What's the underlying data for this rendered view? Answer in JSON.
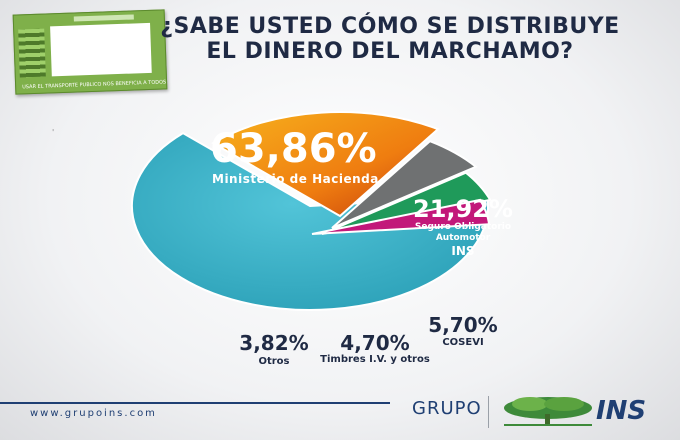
{
  "title": {
    "line1": "¿SABE USTED CÓMO SE DISTRIBUYE",
    "line2": "EL DINERO DEL MARCHAMO?"
  },
  "sticker": {
    "text": "USAR EL TRANSPORTE PUBLICO NOS BENEFICIA A TODOS"
  },
  "chart_data": {
    "type": "pie",
    "slices": [
      {
        "label": "Ministerio de Hacienda",
        "value": 63.86,
        "display": "63,86%",
        "color": "#3cb6cc"
      },
      {
        "label": "Seguro Obligatorio Automotor INS",
        "value": 21.92,
        "display": "21,92%",
        "color": "#f08a12"
      },
      {
        "label": "COSEVI",
        "value": 5.7,
        "display": "5,70%",
        "color": "#6f7172"
      },
      {
        "label": "Timbres I.V. y otros",
        "value": 4.7,
        "display": "4,70%",
        "color": "#1f9a5a"
      },
      {
        "label": "Otros",
        "value": 3.82,
        "display": "3,82%",
        "color": "#c2187a"
      }
    ],
    "labels": {
      "hacienda_pct": "63,86%",
      "hacienda_name": "Ministerio de Hacienda",
      "ins_pct": "21,92%",
      "ins_name_1": "Seguro Obligatorio",
      "ins_name_2": "Automotor",
      "ins_name_3": "INS",
      "cosevi_pct": "5,70%",
      "cosevi_name": "COSEVI",
      "timbres_pct": "4,70%",
      "timbres_name": "Timbres I.V. y otros",
      "otros_pct": "3,82%",
      "otros_name": "Otros"
    }
  },
  "footer": {
    "url": "www.grupoins.com",
    "grupo": "GRUPO",
    "ins": "INS"
  },
  "colors": {
    "navy": "#1f2a44",
    "brand_blue": "#1f3f73",
    "brand_green": "#3e8a3a"
  }
}
